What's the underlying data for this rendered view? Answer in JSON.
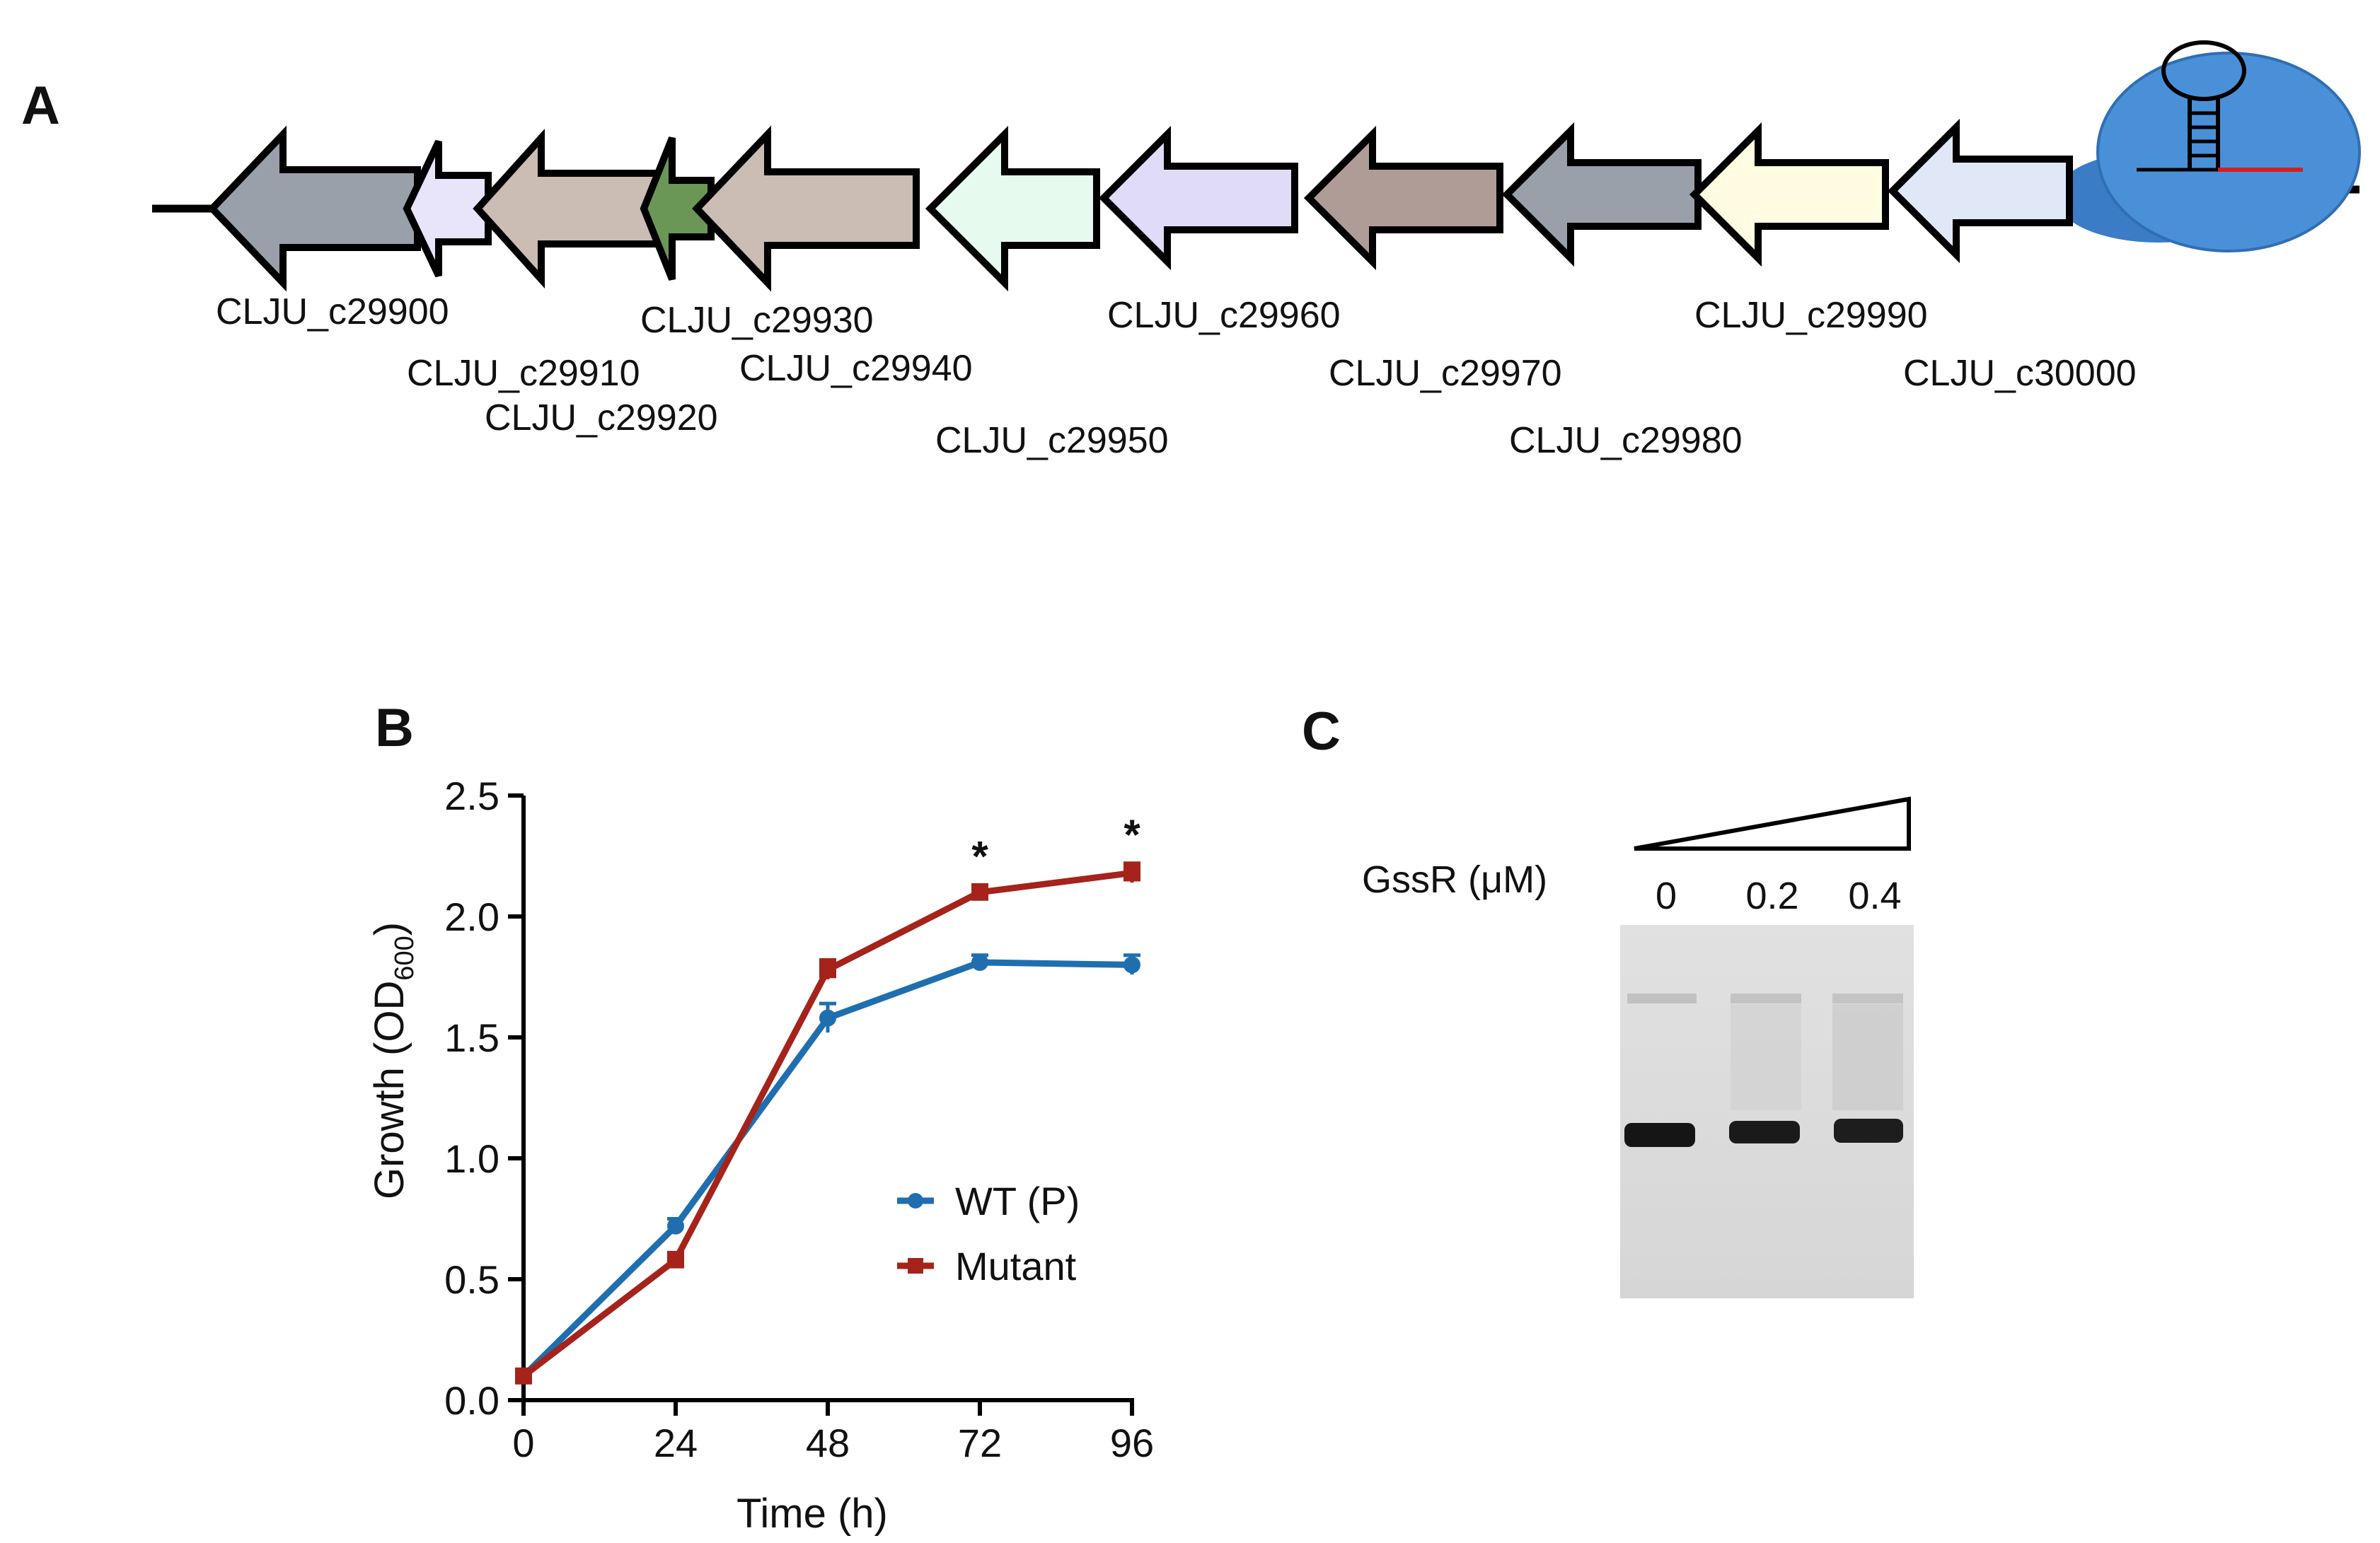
{
  "panel_a": {
    "letter": "A",
    "genes": [
      {
        "label": "CLJU_c29900",
        "color": "#9aa0aa"
      },
      {
        "label": "CLJU_c29910",
        "color": "#e8e4fa"
      },
      {
        "label": "CLJU_c29920",
        "color": "#6a9656"
      },
      {
        "label": "CLJU_c29930",
        "color": "#cbbcb4"
      },
      {
        "label": "CLJU_c29940",
        "color": "#cbbcb4"
      },
      {
        "label": "CLJU_c29950",
        "color": "#e6fbee"
      },
      {
        "label": "CLJU_c29960",
        "color": "#e0dcf8"
      },
      {
        "label": "CLJU_c29970",
        "color": "#b09c96"
      },
      {
        "label": "CLJU_c29980",
        "color": "#9aa0aa"
      },
      {
        "label": "CLJU_c29990",
        "color": "#fffce2"
      },
      {
        "label": "CLJU_c30000",
        "color": "#e0e8f8"
      }
    ],
    "riboswitch_color": "#3f86d0"
  },
  "panel_b": {
    "letter": "B",
    "star_label": "*",
    "colors": {
      "wt": "#1f6fb0",
      "mutant": "#a5231b"
    }
  },
  "panel_c": {
    "letter": "C",
    "protein_label": "GssR (μM)",
    "lanes": [
      "0",
      "0.2",
      "0.4"
    ]
  },
  "chart_data": {
    "type": "line",
    "title": "",
    "xlabel": "Time (h)",
    "ylabel_main": "Growth (OD",
    "ylabel_sub": "600",
    "ylabel_close": ")",
    "x": [
      0,
      24,
      48,
      72,
      96
    ],
    "xticks": [
      "0",
      "24",
      "48",
      "72",
      "96"
    ],
    "yticks": [
      "0.0",
      "0.5",
      "1.0",
      "1.5",
      "2.0",
      "2.5"
    ],
    "xlim": [
      0,
      96
    ],
    "ylim": [
      0,
      2.5
    ],
    "series": [
      {
        "name": "WT (P)",
        "values": [
          0.1,
          0.72,
          1.58,
          1.81,
          1.8
        ],
        "errors": [
          0.02,
          0.03,
          0.06,
          0.03,
          0.04
        ]
      },
      {
        "name": "Mutant",
        "values": [
          0.1,
          0.58,
          1.78,
          2.1,
          2.18
        ],
        "errors": [
          0.02,
          0.03,
          0.04,
          0.03,
          0.04
        ]
      }
    ],
    "significant_at": [
      72,
      96
    ],
    "legend": "center-right"
  }
}
